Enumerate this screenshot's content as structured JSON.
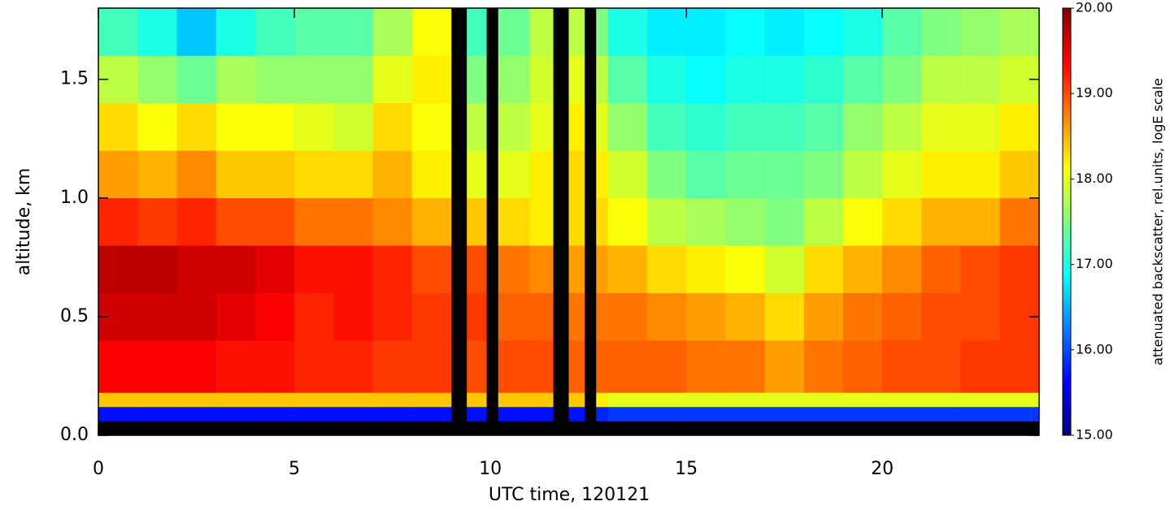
{
  "chart_data": {
    "type": "heatmap",
    "xlabel": "UTC time, 120121",
    "ylabel": "altitude, km",
    "colorbar_label": "attenuated backscatter, rel.units, logE scale",
    "colorscale": "jet",
    "xbins": [
      0,
      1,
      2,
      3,
      4,
      5,
      6,
      7,
      8,
      9,
      9.4,
      9.9,
      10.2,
      11,
      11.6,
      12,
      12.4,
      12.7,
      13,
      14,
      15,
      16,
      17,
      18,
      19,
      20,
      21,
      22,
      23,
      24
    ],
    "ybins": [
      0,
      0.06,
      0.12,
      0.18,
      0.4,
      0.6,
      0.8,
      1.0,
      1.2,
      1.4,
      1.6,
      1.8
    ],
    "values": [
      [
        null,
        null,
        null,
        null,
        null,
        null,
        null,
        null,
        null,
        null,
        null,
        null,
        null,
        null,
        null,
        null,
        null,
        null,
        null,
        null,
        null,
        null,
        null,
        null,
        null,
        null,
        null,
        null,
        null
      ],
      [
        15.7,
        15.7,
        15.7,
        15.7,
        15.7,
        15.7,
        15.7,
        15.7,
        15.7,
        null,
        15.7,
        null,
        15.7,
        15.7,
        null,
        15.7,
        null,
        15.8,
        15.9,
        15.9,
        15.9,
        15.9,
        15.9,
        15.9,
        15.9,
        15.9,
        15.9,
        15.9,
        15.9
      ],
      [
        18.4,
        18.4,
        18.4,
        18.4,
        18.4,
        18.4,
        18.4,
        18.4,
        18.4,
        null,
        18.4,
        null,
        18.4,
        18.4,
        null,
        18.4,
        null,
        18.2,
        18.0,
        18.0,
        18.0,
        18.0,
        18.0,
        18.0,
        18.0,
        18.0,
        18.0,
        18.0,
        18.0
      ],
      [
        19.4,
        19.4,
        19.4,
        19.3,
        19.3,
        19.2,
        19.2,
        19.1,
        19.1,
        null,
        19,
        null,
        19,
        19,
        null,
        18.9,
        null,
        18.9,
        18.9,
        18.9,
        18.8,
        18.8,
        18.6,
        18.8,
        18.9,
        19,
        19,
        19.1,
        19.1
      ],
      [
        19.6,
        19.6,
        19.6,
        19.5,
        19.4,
        19.2,
        19.3,
        19.2,
        19.1,
        null,
        19.1,
        null,
        18.9,
        18.9,
        null,
        18.8,
        null,
        18.8,
        18.8,
        18.7,
        18.6,
        18.5,
        18.3,
        18.6,
        18.8,
        18.9,
        19,
        19,
        19.1
      ],
      [
        19.7,
        19.7,
        19.6,
        19.6,
        19.5,
        19.3,
        19.3,
        19.2,
        19,
        null,
        19,
        null,
        18.8,
        18.7,
        null,
        18.6,
        null,
        18.6,
        18.5,
        18.3,
        18.2,
        18.1,
        17.9,
        18.3,
        18.5,
        18.7,
        18.9,
        19,
        19.1
      ],
      [
        19.2,
        19.1,
        19.2,
        19,
        19,
        18.8,
        18.8,
        18.7,
        18.5,
        null,
        18.4,
        null,
        18.3,
        18.2,
        null,
        18.3,
        null,
        18.3,
        18.1,
        17.8,
        17.7,
        17.6,
        17.5,
        17.8,
        18.1,
        18.3,
        18.5,
        18.5,
        18.8
      ],
      [
        18.6,
        18.5,
        18.7,
        18.4,
        18.4,
        18.3,
        18.3,
        18.5,
        18.2,
        null,
        18,
        null,
        18,
        18.2,
        null,
        18.3,
        null,
        18.2,
        17.9,
        17.5,
        17.3,
        17.4,
        17.4,
        17.5,
        17.8,
        18,
        18.2,
        18.2,
        18.4
      ],
      [
        18.3,
        18.1,
        18.3,
        18.1,
        18.1,
        18,
        17.9,
        18.3,
        18.1,
        null,
        17.8,
        null,
        17.8,
        18,
        null,
        18.2,
        null,
        18,
        17.6,
        17.2,
        17.1,
        17.2,
        17.2,
        17.3,
        17.6,
        17.8,
        18,
        18,
        18.2
      ],
      [
        17.8,
        17.6,
        17.4,
        17.7,
        17.6,
        17.6,
        17.6,
        18,
        18.2,
        null,
        17.5,
        null,
        17.6,
        17.9,
        null,
        18,
        null,
        17.8,
        17.3,
        17,
        16.9,
        17,
        17,
        17.1,
        17.3,
        17.5,
        17.8,
        17.8,
        17.9
      ],
      [
        17.2,
        17,
        16.6,
        17,
        17.2,
        17.3,
        17.3,
        17.7,
        18.1,
        null,
        17.2,
        null,
        17.4,
        17.8,
        null,
        17.8,
        null,
        17.5,
        17,
        16.8,
        16.8,
        16.9,
        16.8,
        16.9,
        17,
        17.3,
        17.5,
        17.6,
        17.7
      ]
    ],
    "xlim": [
      0,
      24
    ],
    "xticks": [
      0,
      5,
      10,
      15,
      20
    ],
    "ylim": [
      0,
      1.8
    ],
    "yticks": [
      {
        "value": 0,
        "label": "0.0"
      },
      {
        "value": 0.5,
        "label": "0.5"
      },
      {
        "value": 1,
        "label": "1.0"
      },
      {
        "value": 1.5,
        "label": "1.5"
      }
    ],
    "zlim": [
      15,
      20
    ],
    "zticks": [
      {
        "value": 15,
        "label": "15.00"
      },
      {
        "value": 16,
        "label": "16.00"
      },
      {
        "value": 17,
        "label": "17.00"
      },
      {
        "value": 18,
        "label": "18.00"
      },
      {
        "value": 19,
        "label": "19.00"
      },
      {
        "value": 20,
        "label": "20.00"
      }
    ]
  }
}
